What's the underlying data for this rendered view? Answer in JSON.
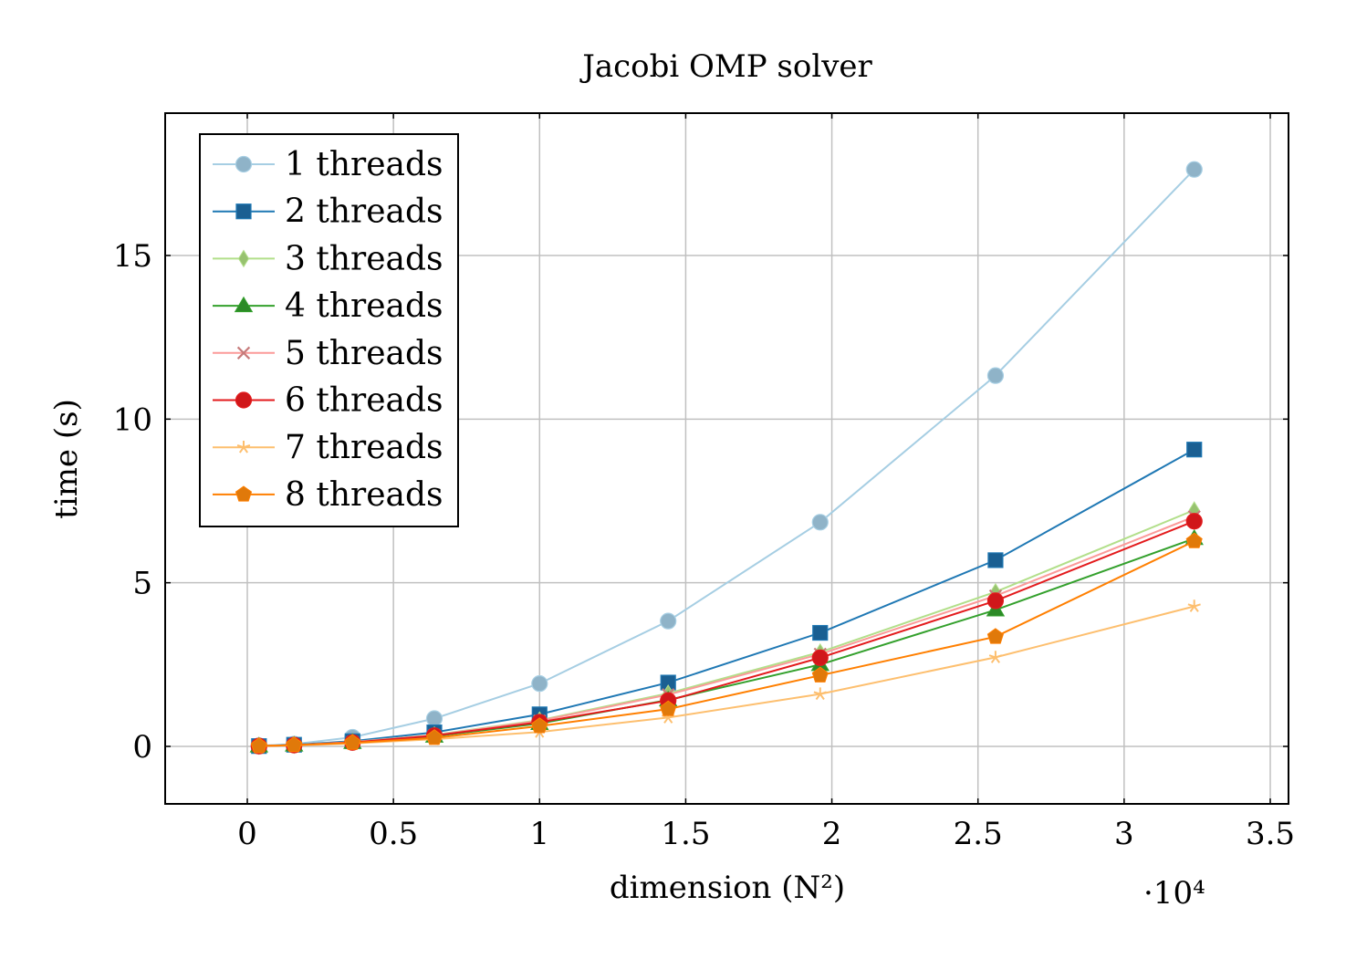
{
  "chart_data": {
    "type": "line",
    "title": "Jacobi OMP solver",
    "xlabel": "dimension (N²)",
    "ylabel": "time (s)",
    "x_multiplier": "·10⁴",
    "xlim": [
      -2800,
      35600
    ],
    "ylim": [
      -1.75,
      19.3
    ],
    "x_ticks": [
      0,
      5000,
      10000,
      15000,
      20000,
      25000,
      30000,
      35000
    ],
    "x_tick_labels": [
      "0",
      "0.5",
      "1",
      "1.5",
      "2",
      "2.5",
      "3",
      "3.5"
    ],
    "y_ticks": [
      0,
      5,
      10,
      15
    ],
    "y_tick_labels": [
      "0",
      "5",
      "10",
      "15"
    ],
    "grid": true,
    "legend_position": "top-left",
    "x": [
      400,
      1600,
      3600,
      6400,
      10000,
      14400,
      19600,
      25600,
      32400
    ],
    "series": [
      {
        "name": "1 threads",
        "color": "#a6cee3",
        "marker": "circle",
        "markerFill": "#8fb3c8",
        "values": [
          0.02,
          0.07,
          0.28,
          0.85,
          1.92,
          3.83,
          6.85,
          11.33,
          17.63
        ]
      },
      {
        "name": "2 threads",
        "color": "#1f78b4",
        "marker": "square",
        "markerFill": "#1a5f92",
        "values": [
          0.01,
          0.05,
          0.16,
          0.43,
          0.98,
          1.95,
          3.47,
          5.69,
          9.07
        ]
      },
      {
        "name": "3 threads",
        "color": "#b2df8a",
        "marker": "diamond",
        "markerFill": "#97c26f",
        "values": [
          0.01,
          0.04,
          0.13,
          0.35,
          0.8,
          1.62,
          2.88,
          4.72,
          7.22
        ]
      },
      {
        "name": "4 threads",
        "color": "#33a02c",
        "marker": "triangle",
        "markerFill": "#2c8a27",
        "values": [
          0.01,
          0.04,
          0.12,
          0.31,
          0.7,
          1.42,
          2.5,
          4.17,
          6.35
        ]
      },
      {
        "name": "5 threads",
        "color": "#fb9a99",
        "marker": "cross",
        "markerFill": "#c77b7b",
        "values": [
          0.01,
          0.04,
          0.13,
          0.34,
          0.78,
          1.58,
          2.82,
          4.6,
          7.02
        ]
      },
      {
        "name": "6 threads",
        "color": "#e31a1c",
        "marker": "circle",
        "markerFill": "#d0171a",
        "values": [
          0.01,
          0.04,
          0.12,
          0.33,
          0.74,
          1.4,
          2.71,
          4.45,
          6.88
        ]
      },
      {
        "name": "7 threads",
        "color": "#fdbf6f",
        "marker": "star",
        "markerFill": "#fdbf6f",
        "values": [
          0.01,
          0.03,
          0.09,
          0.22,
          0.44,
          0.88,
          1.6,
          2.72,
          4.28
        ]
      },
      {
        "name": "8 threads",
        "color": "#ff7f00",
        "marker": "pentagon",
        "markerFill": "#e0790a",
        "values": [
          0.01,
          0.04,
          0.11,
          0.26,
          0.62,
          1.14,
          2.17,
          3.35,
          6.27
        ]
      }
    ]
  }
}
